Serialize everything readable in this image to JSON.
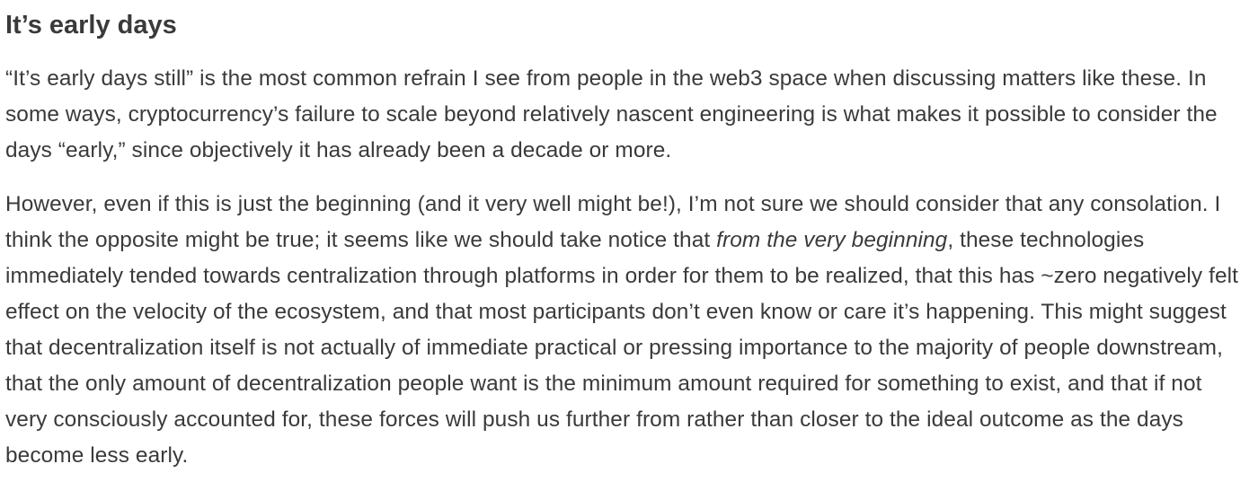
{
  "section": {
    "heading": "It’s early days",
    "paragraph1": "“It’s early days still” is the most common refrain I see from people in the web3 space when discussing matters like these. In some ways, cryptocurrency’s failure to scale beyond relatively nascent engineering is what makes it possible to consider the days “early,” since objectively it has already been a decade or more.",
    "paragraph2": {
      "before": "However, even if this is just the beginning (and it very well might be!), I’m not sure we should consider that any consolation. I think the opposite might be true; it seems like we should take notice that ",
      "emphasis": "from the very beginning",
      "after": ", these technologies immediately tended towards centralization through platforms in order for them to be realized, that this has ~zero negatively felt effect on the velocity of the ecosystem, and that most participants don’t even know or care it’s happening. This might suggest that decentralization itself is not actually of immediate practical or pressing importance to the majority of people downstream, that the only amount of decentralization people want is the minimum amount required for something to exist, and that if not very consciously accounted for, these forces will push us further from rather than closer to the ideal outcome as the days become less early."
    }
  }
}
